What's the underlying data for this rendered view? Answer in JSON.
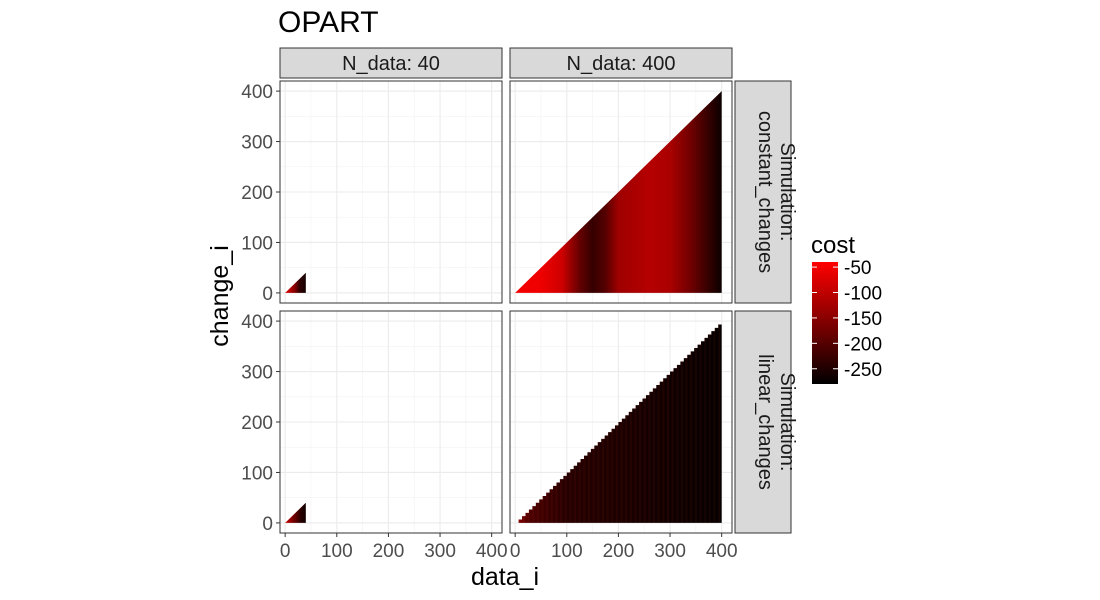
{
  "chart_data": {
    "type": "heatmap",
    "title": "OPART",
    "xlabel": "data_i",
    "ylabel": "change_i",
    "xlim": [
      -10,
      420
    ],
    "ylim": [
      -20,
      420
    ],
    "x_ticks": [
      0,
      100,
      200,
      300,
      400
    ],
    "y_ticks": [
      0,
      100,
      200,
      300,
      400
    ],
    "x_tick_labels": [
      "0",
      "100",
      "200",
      "300",
      "400"
    ],
    "y_tick_labels": [
      "0",
      "100",
      "200",
      "300",
      "400"
    ],
    "grid": true,
    "facet_cols": [
      "N_data: 40",
      "N_data: 400"
    ],
    "facet_rows": [
      [
        "Simulation:",
        "constant_changes"
      ],
      [
        "Simulation:",
        "linear_changes"
      ]
    ],
    "panels": [
      {
        "row": 0,
        "col": 0,
        "n_data": 40,
        "simulation": "constant_changes",
        "shape": "triangle",
        "extent": [
          0,
          40
        ],
        "pattern": "constant"
      },
      {
        "row": 0,
        "col": 1,
        "n_data": 400,
        "simulation": "constant_changes",
        "shape": "triangle",
        "extent": [
          0,
          400
        ],
        "pattern": "constant",
        "cost_by_data_i": [
          {
            "x": 0,
            "cost": -50
          },
          {
            "x": 50,
            "cost": -55
          },
          {
            "x": 90,
            "cost": -85
          },
          {
            "x": 125,
            "cost": -185
          },
          {
            "x": 150,
            "cost": -230
          },
          {
            "x": 175,
            "cost": -200
          },
          {
            "x": 200,
            "cost": -130
          },
          {
            "x": 260,
            "cost": -110
          },
          {
            "x": 300,
            "cost": -120
          },
          {
            "x": 340,
            "cost": -175
          },
          {
            "x": 380,
            "cost": -240
          },
          {
            "x": 400,
            "cost": -270
          }
        ]
      },
      {
        "row": 1,
        "col": 0,
        "n_data": 40,
        "simulation": "linear_changes",
        "shape": "triangle",
        "extent": [
          0,
          40
        ],
        "pattern": "linear"
      },
      {
        "row": 1,
        "col": 1,
        "n_data": 400,
        "simulation": "linear_changes",
        "shape": "triangle_stepped",
        "extent": [
          0,
          400
        ],
        "pattern": "linear",
        "cost_by_data_i": [
          {
            "x": 0,
            "cost": -150
          },
          {
            "x": 30,
            "cost": -210
          },
          {
            "x": 100,
            "cost": -245
          },
          {
            "x": 200,
            "cost": -255
          },
          {
            "x": 300,
            "cost": -265
          },
          {
            "x": 400,
            "cost": -275
          }
        ]
      }
    ],
    "legend": {
      "title": "cost",
      "position": "right",
      "breaks": [
        -50,
        -100,
        -150,
        -200,
        -250
      ],
      "labels": [
        "-50",
        "-100",
        "-150",
        "-200",
        "-250"
      ],
      "limits": [
        -280,
        -40
      ],
      "low_color": "#000000",
      "high_color": "#ff0000"
    }
  }
}
